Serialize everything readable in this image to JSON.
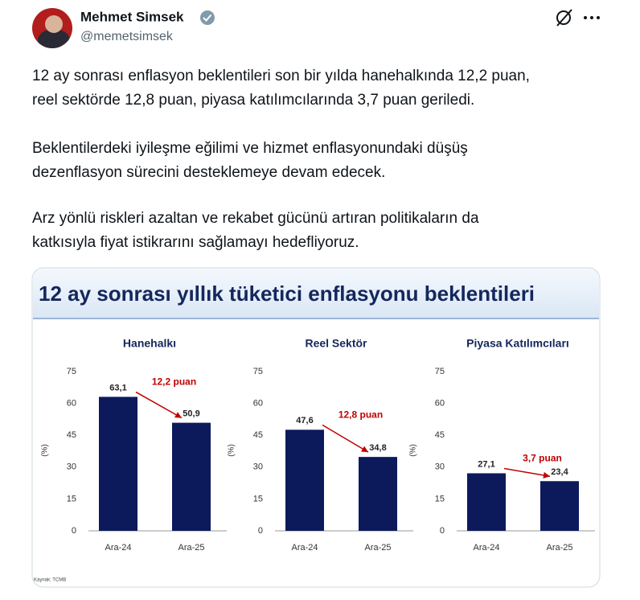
{
  "tweet": {
    "name": "Mehmet Simsek",
    "handle": "@memetsimsek",
    "text": [
      [
        "12 ay sonrası enflasyon beklentileri son bir yılda hanehalkında 12,2 puan,",
        "reel sektörde 12,8 puan, piyasa katılımcılarında 3,7 puan geriledi."
      ],
      [
        "Beklentilerdeki iyileşme eğilimi ve hizmet enflasyonundaki düşüş",
        "dezenflasyon sürecini desteklemeye devam edecek."
      ],
      [
        "Arz yönlü riskleri azaltan ve rekabet gücünü artıran politikaların da",
        "katkısıyla fiyat istikrarını sağlamayı hedefliyoruz."
      ]
    ]
  },
  "image": {
    "title": "12 ay sonrası yıllık tüketici enflasyonu beklentileri",
    "source": "Kaynak: TCMB"
  },
  "chart_data": [
    {
      "type": "bar",
      "title": "Hanehalkı",
      "y_label": "(%)",
      "categories": [
        "Ara-24",
        "Ara-25"
      ],
      "values": [
        63.1,
        50.9
      ],
      "value_labels": [
        "63,1",
        "50,9"
      ],
      "color": "#0c1a5c",
      "ylim": [
        0,
        75
      ],
      "yticks": [
        0,
        15,
        30,
        45,
        60,
        75
      ],
      "annotation": "12,2 puan"
    },
    {
      "type": "bar",
      "title": "Reel Sektör",
      "y_label": "(%)",
      "categories": [
        "Ara-24",
        "Ara-25"
      ],
      "values": [
        47.6,
        34.8
      ],
      "value_labels": [
        "47,6",
        "34,8"
      ],
      "color": "#0c1a5c",
      "ylim": [
        0,
        75
      ],
      "yticks": [
        0,
        15,
        30,
        45,
        60,
        75
      ],
      "annotation": "12,8 puan"
    },
    {
      "type": "bar",
      "title": "Piyasa Katılımcıları",
      "y_label": "(%)",
      "categories": [
        "Ara-24",
        "Ara-25"
      ],
      "values": [
        27.1,
        23.4
      ],
      "value_labels": [
        "27,1",
        "23,4"
      ],
      "color": "#0c1a5c",
      "ylim": [
        0,
        75
      ],
      "yticks": [
        0,
        15,
        30,
        45,
        60,
        75
      ],
      "annotation": "3,7 puan"
    }
  ]
}
